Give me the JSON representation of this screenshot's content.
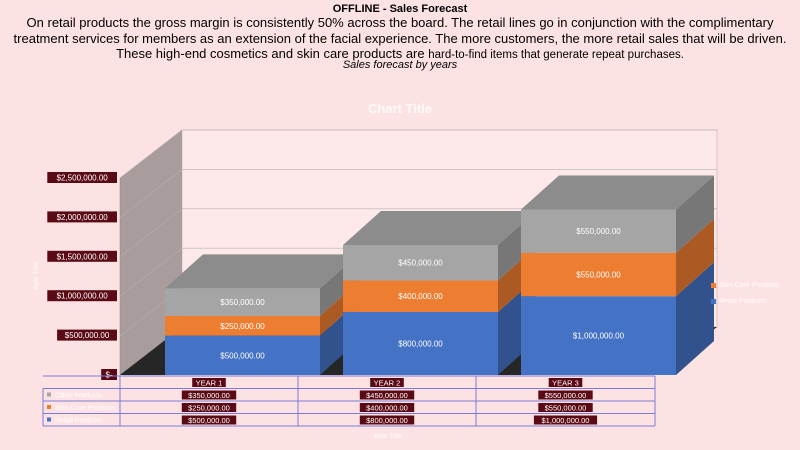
{
  "page": {
    "title": "OFFLINE - Sales Forecast",
    "intro_main": "On retail products the gross margin is consistently 50% across the board. The retail lines go in conjunction with the complimentary treatment services for members as an extension of the facial experience. The more customers, the more retail sales that will be driven.  These high-end cosmetics and  skin care  products are",
    "intro_tail": "hard-to-find items that generate repeat purchases.",
    "subtitle": "Sales forecast by years"
  },
  "colors": {
    "background": "#fde2e4",
    "label_bg": "#5a0a14",
    "series_blue": "#4472c4",
    "series_orange": "#ed7d31",
    "series_gray": "#a5a5a5"
  },
  "chart_data": {
    "type": "bar",
    "stacked": true,
    "three_d": true,
    "title": "Chart Title",
    "ylabel": "Axis Title",
    "xlabel": "Axis Title",
    "categories": [
      "YEAR 1",
      "YEAR 2",
      "YEAR 3"
    ],
    "ylim": [
      0,
      2500000
    ],
    "yticks": [
      0,
      500000,
      1000000,
      1500000,
      2000000,
      2500000
    ],
    "ytick_labels": [
      "$-",
      "$500,000.00",
      "$1,000,000.00",
      "$1,500,000.00",
      "$2,000,000.00",
      "$2,500,000.00"
    ],
    "series": [
      {
        "name": "Retail Products",
        "color": "#4472c4",
        "values": [
          500000,
          800000,
          1000000
        ],
        "labels": [
          "$500,000.00",
          "$800,000.00",
          "$1,000,000.00"
        ]
      },
      {
        "name": "Skin Care Products",
        "color": "#ed7d31",
        "values": [
          250000,
          400000,
          550000
        ],
        "labels": [
          "$250,000.00",
          "$400,000.00",
          "$550,000.00"
        ]
      },
      {
        "name": "Other Products",
        "color": "#a5a5a5",
        "values": [
          350000,
          450000,
          550000
        ],
        "labels": [
          "$350,000.00",
          "$450,000.00",
          "$550,000.00"
        ]
      }
    ],
    "legend_position": "right",
    "grid": true,
    "data_table": true
  }
}
